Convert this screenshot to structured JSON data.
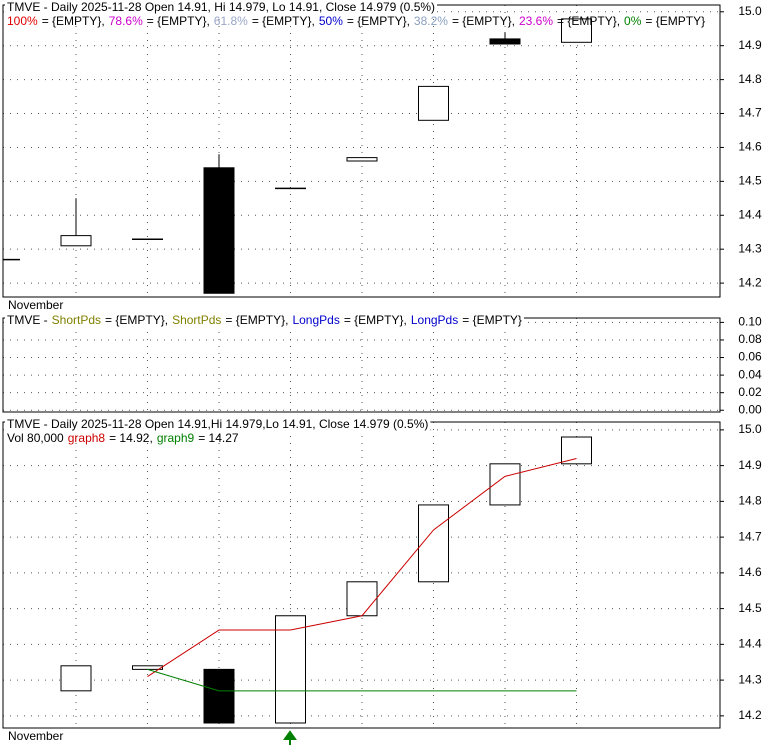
{
  "chart_data": [
    {
      "type": "candlestick",
      "title": "TMVE - Daily 2025-11-28 Open 14.91, Hi 14.979, Lo 14.91, Close 14.979 (0.5%)",
      "x_label": "November",
      "open": [
        14.27,
        14.31,
        14.33,
        14.54,
        14.48,
        14.56,
        14.68,
        14.92,
        14.91
      ],
      "high": [
        14.27,
        14.45,
        14.33,
        14.58,
        14.48,
        14.57,
        14.78,
        14.94,
        14.979
      ],
      "low": [
        14.27,
        14.31,
        14.33,
        14.17,
        14.48,
        14.56,
        14.68,
        14.905,
        14.91
      ],
      "close": [
        14.27,
        14.34,
        14.33,
        14.17,
        14.48,
        14.57,
        14.78,
        14.905,
        14.979
      ],
      "series": [
        {
          "name": "100%",
          "color": "#e00000",
          "value_text": "= {EMPTY},"
        },
        {
          "name": "78.6%",
          "color": "#cc00cc",
          "value_text": "= {EMPTY},"
        },
        {
          "name": "61.8%",
          "color": "#9aa6c8",
          "value_text": "= {EMPTY},"
        },
        {
          "name": "50%",
          "color": "#0000cc",
          "value_text": "= {EMPTY},"
        },
        {
          "name": "38.2%",
          "color": "#8aa0c0",
          "value_text": "= {EMPTY},"
        },
        {
          "name": "23.6%",
          "color": "#cc00cc",
          "value_text": "= {EMPTY},"
        },
        {
          "name": "0%",
          "color": "#008000",
          "value_text": "= {EMPTY}"
        }
      ],
      "ylim": [
        14.159,
        15.02
      ],
      "yticks": [
        14.2,
        14.3,
        14.4,
        14.5,
        14.6,
        14.7,
        14.8,
        14.9,
        {
          "value": 15,
          "label": "15.0"
        }
      ],
      "grid": true
    },
    {
      "type": "line",
      "title": "TMVE -",
      "series": [
        {
          "name": "ShortPds",
          "color": "#808000",
          "value_text": "= {EMPTY},"
        },
        {
          "name": "ShortPds",
          "color": "#808000",
          "value_text": "= {EMPTY},"
        },
        {
          "name": "LongPds",
          "color": "#0000cc",
          "value_text": "= {EMPTY},"
        },
        {
          "name": "LongPds",
          "color": "#0000cc",
          "value_text": "= {EMPTY}"
        }
      ],
      "ylim": [
        -0.002,
        0.105
      ],
      "yticks": [
        {
          "value": 0,
          "label": "0.00"
        },
        {
          "value": 0.02,
          "label": "0.02"
        },
        {
          "value": 0.04,
          "label": "0.04"
        },
        {
          "value": 0.06,
          "label": "0.06"
        },
        {
          "value": 0.08,
          "label": "0.08"
        },
        {
          "value": 0.1,
          "label": "0.10"
        }
      ],
      "grid": true
    },
    {
      "type": "candlestick",
      "title": "TMVE - Daily 2025-11-28 Open 14.91,Hi 14.979,Lo 14.91, Close 14.979 (0.5%)",
      "volume_text": "Vol 80,000",
      "x_label": "November",
      "open": [
        null,
        14.27,
        14.33,
        14.33,
        14.18,
        14.48,
        14.575,
        14.79,
        14.905
      ],
      "close": [
        null,
        14.34,
        14.34,
        14.18,
        14.48,
        14.575,
        14.79,
        14.905,
        14.98
      ],
      "series": [
        {
          "name": "graph8",
          "color": "#cc0000",
          "value_text": "= 14.92,",
          "values": [
            null,
            null,
            14.31,
            14.44,
            14.44,
            14.48,
            14.72,
            14.87,
            14.92
          ]
        },
        {
          "name": "graph9",
          "color": "#008000",
          "value_text": "= 14.27",
          "values": [
            null,
            null,
            14.33,
            14.27,
            14.27,
            14.27,
            14.27,
            14.27,
            14.27
          ]
        }
      ],
      "ylim": [
        14.166,
        15.022
      ],
      "yticks": [
        14.2,
        14.3,
        14.4,
        14.5,
        14.6,
        14.7,
        14.8,
        14.9,
        {
          "value": 15,
          "label": "15.0"
        }
      ],
      "grid": true
    }
  ]
}
